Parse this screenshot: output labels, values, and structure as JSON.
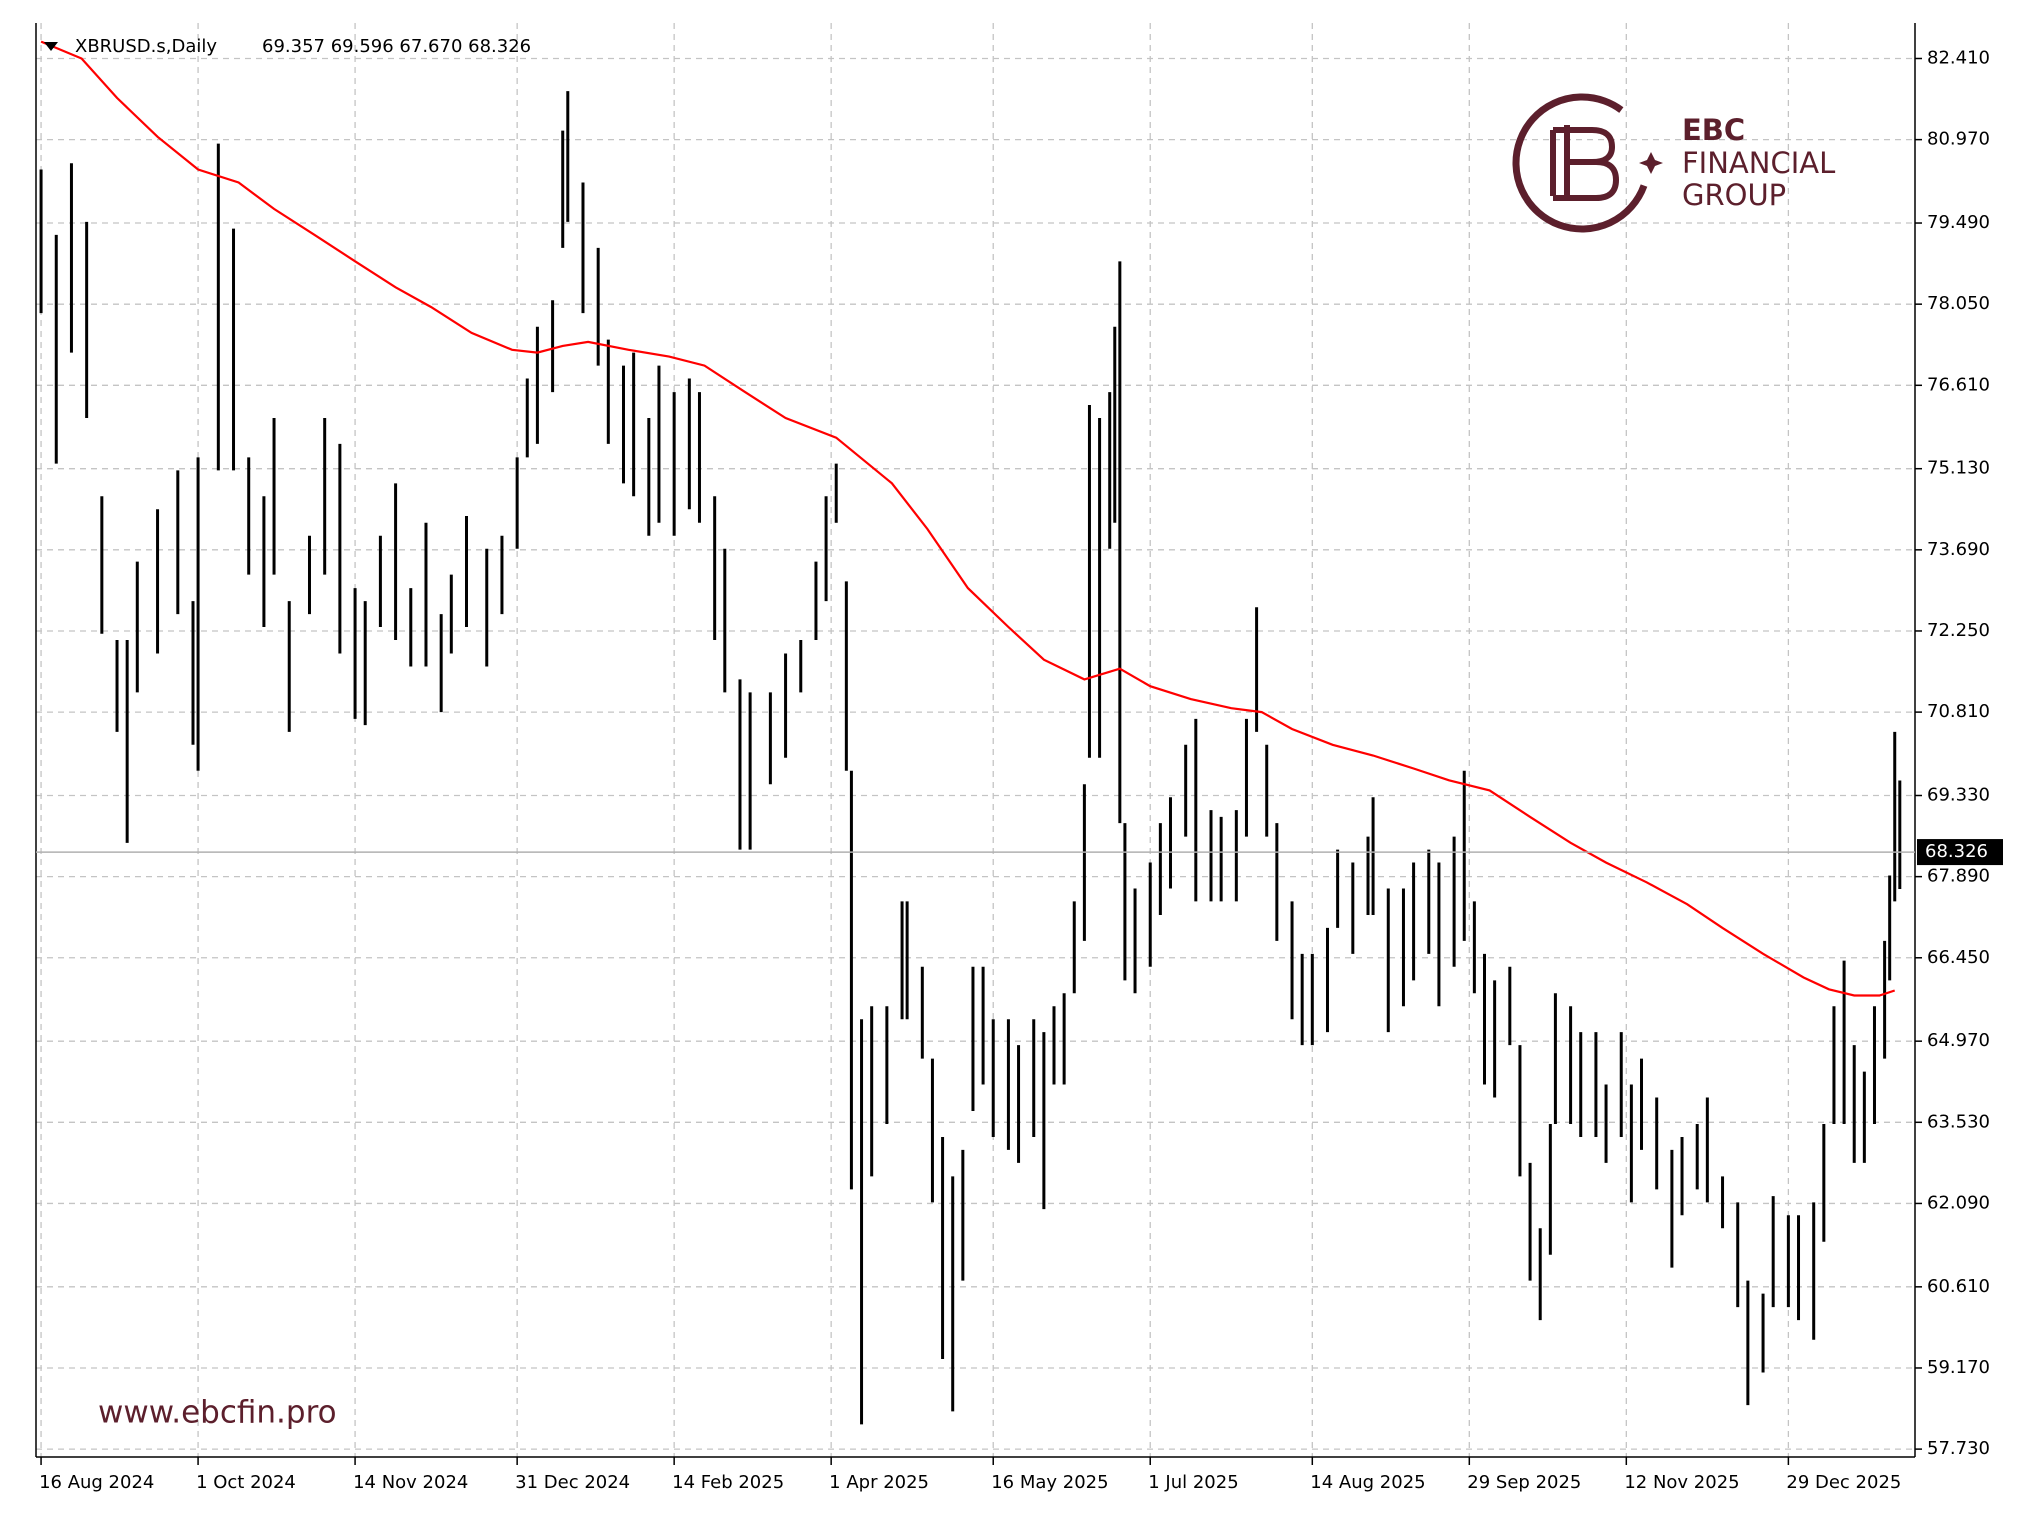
{
  "chart_data": {
    "type": "ohlc",
    "title": "XBRUSD.s,Daily",
    "subtitle": "69.357 69.596 67.670 68.326",
    "website": "www.ebcfin.pro",
    "logo": {
      "name": "EBC",
      "line2": "FINANCIAL",
      "line3": "GROUP",
      "color": "#5c1f2c"
    },
    "color": "#000000",
    "x": [
      0,
      3,
      6,
      9,
      12,
      15,
      17,
      19,
      23,
      27,
      30,
      31,
      35,
      38,
      41,
      44,
      46,
      49,
      53,
      56,
      59,
      62,
      64,
      67,
      70,
      73,
      76,
      79,
      81,
      84,
      88,
      91,
      94,
      96,
      98,
      101,
      103,
      104,
      107,
      110,
      112,
      115,
      117,
      120,
      122,
      125,
      128,
      130,
      133,
      135,
      138,
      140,
      144,
      147,
      150,
      153,
      155,
      157,
      159,
      160,
      162,
      164,
      167,
      170,
      171,
      174,
      176,
      178,
      180,
      182,
      184,
      186,
      188,
      191,
      193,
      196,
      198,
      200,
      202,
      204,
      206,
      207,
      209,
      211,
      212,
      213,
      214,
      216,
      219,
      221,
      223,
      226,
      228,
      231,
      233,
      236,
      238,
      240,
      242,
      244,
      247,
      249,
      251,
      254,
      256,
      259,
      262,
      263,
      266,
      269,
      271,
      274,
      276,
      279,
      281,
      283,
      285,
      287,
      290,
      292,
      294,
      296,
      298,
      299,
      302,
      304,
      307,
      309,
      312,
      314,
      316,
      319,
      322,
      324,
      327,
      329,
      332,
      335,
      337,
      340,
      342,
      345,
      347,
      350,
      352,
      354,
      356,
      358,
      360,
      362,
      364,
      365,
      366,
      367
    ],
    "high": [
      80.44,
      79.28,
      80.55,
      79.51,
      74.64,
      72.09,
      72.09,
      73.48,
      74.41,
      75.1,
      72.78,
      75.33,
      80.9,
      79.39,
      75.33,
      74.64,
      76.03,
      72.78,
      73.94,
      76.03,
      75.57,
      73.01,
      72.78,
      73.94,
      74.87,
      73.01,
      74.17,
      72.55,
      73.25,
      74.29,
      73.71,
      73.94,
      75.33,
      76.73,
      77.65,
      78.12,
      81.13,
      81.83,
      80.21,
      79.05,
      77.42,
      76.96,
      77.19,
      76.03,
      76.96,
      76.49,
      76.73,
      76.49,
      74.64,
      73.71,
      71.39,
      71.16,
      71.16,
      71.85,
      72.09,
      73.48,
      74.64,
      75.22,
      73.13,
      69.77,
      65.36,
      65.59,
      65.59,
      67.45,
      67.45,
      66.29,
      64.66,
      63.27,
      62.57,
      63.04,
      66.29,
      66.29,
      65.36,
      65.36,
      64.9,
      65.36,
      65.13,
      65.59,
      65.82,
      67.45,
      69.53,
      76.26,
      76.03,
      76.49,
      77.65,
      78.81,
      68.84,
      67.68,
      68.14,
      68.84,
      69.3,
      70.23,
      70.69,
      69.07,
      68.95,
      69.07,
      70.69,
      72.67,
      70.23,
      68.84,
      67.45,
      66.52,
      66.52,
      66.98,
      68.37,
      68.14,
      68.6,
      69.3,
      67.68,
      67.68,
      68.14,
      68.37,
      68.14,
      68.6,
      69.77,
      67.45,
      66.52,
      66.05,
      66.29,
      64.9,
      62.81,
      61.65,
      63.5,
      65.82,
      65.59,
      65.13,
      65.13,
      64.2,
      65.13,
      64.2,
      64.66,
      63.97,
      63.04,
      63.27,
      63.5,
      63.97,
      62.57,
      62.11,
      60.72,
      60.49,
      62.22,
      61.88,
      61.88,
      62.11,
      63.5,
      65.59,
      66.4,
      64.9,
      64.43,
      65.59,
      66.75,
      67.91,
      70.46,
      69.596
    ],
    "low": [
      77.89,
      75.22,
      77.19,
      76.03,
      72.2,
      70.46,
      68.49,
      71.16,
      71.85,
      72.55,
      70.23,
      69.77,
      75.1,
      75.1,
      73.25,
      72.32,
      73.25,
      70.46,
      72.55,
      73.25,
      71.85,
      70.69,
      70.58,
      72.32,
      72.09,
      71.62,
      71.62,
      70.81,
      71.85,
      72.32,
      71.62,
      72.55,
      73.71,
      75.33,
      75.57,
      76.49,
      79.05,
      79.51,
      77.89,
      76.96,
      75.57,
      74.87,
      74.64,
      73.94,
      74.17,
      73.94,
      74.41,
      74.17,
      72.09,
      71.16,
      68.37,
      68.37,
      69.53,
      70.0,
      71.16,
      72.09,
      72.78,
      74.17,
      69.77,
      62.34,
      58.17,
      62.57,
      63.5,
      65.36,
      65.36,
      64.66,
      62.11,
      59.33,
      58.4,
      60.72,
      63.73,
      64.2,
      63.27,
      63.04,
      62.81,
      63.27,
      61.99,
      64.2,
      64.2,
      65.82,
      66.75,
      70.0,
      70.0,
      73.71,
      74.17,
      68.84,
      66.05,
      65.82,
      66.29,
      67.21,
      67.68,
      68.6,
      67.45,
      67.45,
      67.45,
      67.45,
      68.6,
      70.46,
      68.6,
      66.75,
      65.36,
      64.9,
      64.9,
      65.13,
      66.98,
      66.52,
      67.21,
      67.21,
      65.13,
      65.59,
      66.05,
      66.52,
      65.59,
      66.29,
      66.75,
      65.82,
      64.2,
      63.97,
      64.9,
      62.57,
      60.72,
      60.02,
      61.18,
      63.5,
      63.5,
      63.27,
      63.27,
      62.81,
      63.27,
      62.11,
      63.04,
      62.34,
      60.95,
      61.88,
      62.34,
      62.11,
      61.65,
      60.25,
      58.51,
      59.09,
      60.25,
      60.25,
      60.02,
      59.67,
      61.41,
      63.5,
      63.5,
      62.81,
      62.81,
      63.5,
      64.66,
      66.05,
      67.45,
      67.67
    ],
    "ma": {
      "color": "#ff0000",
      "x": [
        0,
        8,
        15,
        23,
        31,
        39,
        46,
        54,
        62,
        70,
        77,
        85,
        93,
        98,
        103,
        108,
        116,
        124,
        131,
        139,
        147,
        157,
        168,
        175,
        183,
        191,
        198,
        206,
        213,
        219,
        227,
        235,
        241,
        247,
        255,
        263,
        271,
        278,
        286,
        294,
        302,
        309,
        317,
        325,
        332,
        340,
        348,
        353,
        358,
        363,
        366
      ],
      "values": [
        82.71,
        82.41,
        81.71,
        81.02,
        80.44,
        80.21,
        79.74,
        79.28,
        78.81,
        78.35,
        78.0,
        77.54,
        77.24,
        77.19,
        77.31,
        77.38,
        77.24,
        77.12,
        76.96,
        76.49,
        76.03,
        75.68,
        74.87,
        74.06,
        73.01,
        72.32,
        71.74,
        71.39,
        71.58,
        71.27,
        71.04,
        70.88,
        70.81,
        70.51,
        70.23,
        70.04,
        69.81,
        69.6,
        69.42,
        68.95,
        68.49,
        68.14,
        67.79,
        67.4,
        66.98,
        66.52,
        66.1,
        65.89,
        65.78,
        65.78,
        65.87
      ]
    },
    "current_price": 68.326,
    "xlim": [
      -1,
      370
    ],
    "xticks": [
      {
        "value": 0,
        "label": "16 Aug 2024"
      },
      {
        "value": 31,
        "label": "1 Oct 2024"
      },
      {
        "value": 62,
        "label": "14 Nov 2024"
      },
      {
        "value": 94,
        "label": "31 Dec 2024"
      },
      {
        "value": 125,
        "label": "14 Feb 2025"
      },
      {
        "value": 156,
        "label": "1 Apr 2025"
      },
      {
        "value": 188,
        "label": "16 May 2025"
      },
      {
        "value": 219,
        "label": "1 Jul 2025"
      },
      {
        "value": 251,
        "label": "14 Aug 2025"
      },
      {
        "value": 282,
        "label": "29 Sep 2025"
      },
      {
        "value": 313,
        "label": "12 Nov 2025"
      },
      {
        "value": 345,
        "label": "29 Dec 2025"
      }
    ],
    "ylim": [
      57.59,
      83.04
    ],
    "yticks": [
      {
        "value": 82.41,
        "label": "82.410"
      },
      {
        "value": 80.97,
        "label": "80.970"
      },
      {
        "value": 79.49,
        "label": "79.490"
      },
      {
        "value": 78.05,
        "label": "78.050"
      },
      {
        "value": 76.61,
        "label": "76.610"
      },
      {
        "value": 75.13,
        "label": "75.130"
      },
      {
        "value": 73.69,
        "label": "73.690"
      },
      {
        "value": 72.25,
        "label": "72.250"
      },
      {
        "value": 70.81,
        "label": "70.810"
      },
      {
        "value": 69.33,
        "label": "69.330"
      },
      {
        "value": 67.89,
        "label": "67.890"
      },
      {
        "value": 66.45,
        "label": "66.450"
      },
      {
        "value": 64.97,
        "label": "64.970"
      },
      {
        "value": 63.53,
        "label": "63.530"
      },
      {
        "value": 62.09,
        "label": "62.090"
      },
      {
        "value": 60.61,
        "label": "60.610"
      },
      {
        "value": 59.17,
        "label": "59.170"
      },
      {
        "value": 57.73,
        "label": "57.730"
      }
    ],
    "grid": true
  }
}
